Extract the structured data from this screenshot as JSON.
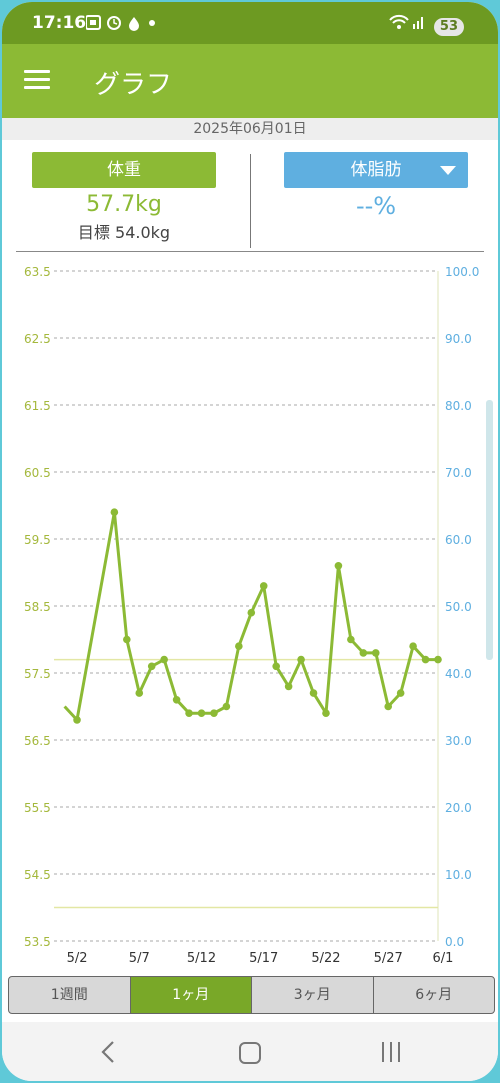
{
  "status_bar": {
    "time": "17:16",
    "icons": [
      "screenshot-icon",
      "alarm-icon",
      "drop-icon",
      "dot-icon"
    ],
    "signal_icons": [
      "wifi-icon",
      "cell-signal-icon"
    ],
    "battery": "53"
  },
  "app_bar": {
    "title": "グラフ"
  },
  "date": "2025年06月01日",
  "weight": {
    "label": "体重",
    "value": "57.7kg",
    "goal": "目標 54.0kg"
  },
  "body_fat": {
    "label": "体脂肪",
    "value": "--%"
  },
  "colors": {
    "green": "#8cba35",
    "blue": "#5fafe0",
    "dark_green": "#6d9a22"
  },
  "chart_data": {
    "type": "line",
    "x": [
      "5/2",
      "5/3",
      "5/6",
      "5/7",
      "5/8",
      "5/9",
      "5/10",
      "5/11",
      "5/12",
      "5/13",
      "5/14",
      "5/15",
      "5/16",
      "5/17",
      "5/18",
      "5/19",
      "5/20",
      "5/21",
      "5/22",
      "5/23",
      "5/24",
      "5/25",
      "5/26",
      "5/27",
      "5/28",
      "5/29",
      "5/30",
      "5/31",
      "6/1"
    ],
    "x_day_index": [
      1,
      2,
      5,
      6,
      7,
      8,
      9,
      10,
      11,
      12,
      13,
      14,
      15,
      16,
      17,
      18,
      19,
      20,
      21,
      22,
      23,
      24,
      25,
      26,
      27,
      28,
      29,
      30,
      31
    ],
    "series": [
      {
        "values": [
          57.0,
          56.8,
          59.9,
          58.0,
          57.2,
          57.6,
          57.7,
          57.1,
          56.9,
          56.9,
          56.9,
          57.0,
          57.9,
          58.4,
          58.8,
          57.6,
          57.3,
          57.7,
          57.2,
          56.9,
          59.1,
          58.0,
          57.8,
          57.8,
          57.0,
          57.2,
          57.9,
          57.7,
          57.7
        ]
      }
    ],
    "x_ticks": [
      "5/2",
      "5/7",
      "5/12",
      "5/17",
      "5/22",
      "5/27",
      "6/1"
    ],
    "y_left_ticks": [
      "63.5",
      "62.5",
      "61.5",
      "60.5",
      "59.5",
      "58.5",
      "57.5",
      "56.5",
      "55.5",
      "54.5",
      "53.5"
    ],
    "y_right_ticks": [
      "100.0",
      "90.0",
      "80.0",
      "70.0",
      "60.0",
      "50.0",
      "40.0",
      "30.0",
      "20.0",
      "10.0",
      "0.0"
    ],
    "ylim_left": [
      53.5,
      63.5
    ],
    "ylim_right": [
      0,
      100
    ],
    "current_line": 57.7,
    "goal_line": 54.0,
    "grid": true
  },
  "tabs": [
    {
      "label": "1週間",
      "active": false
    },
    {
      "label": "1ヶ月",
      "active": true
    },
    {
      "label": "3ヶ月",
      "active": false
    },
    {
      "label": "6ヶ月",
      "active": false
    }
  ],
  "nav": {
    "icons": [
      "back-icon",
      "home-icon",
      "recent-apps-icon"
    ]
  }
}
